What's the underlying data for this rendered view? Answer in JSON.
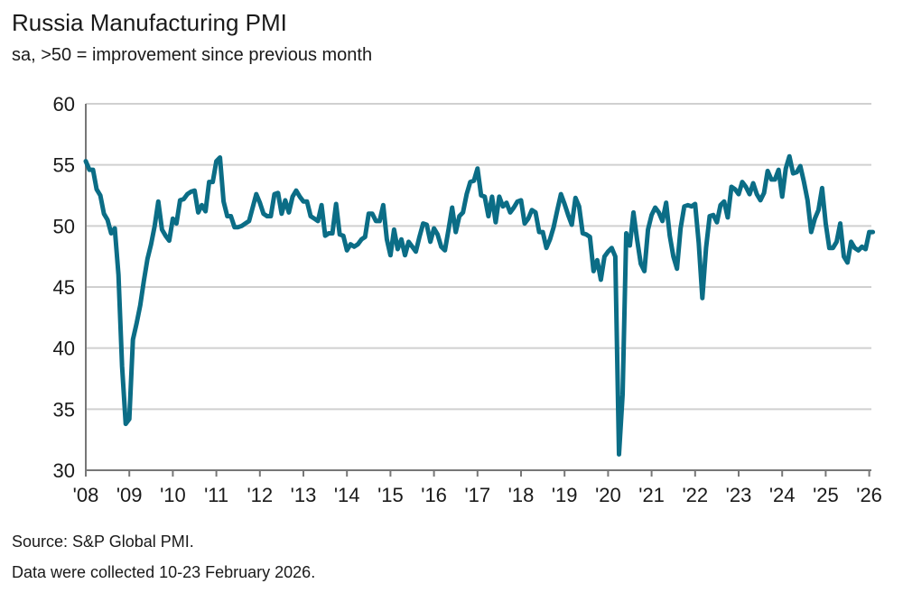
{
  "chart_data": {
    "type": "line",
    "title": "Russia Manufacturing PMI",
    "subtitle": "sa, >50 = improvement since previous month",
    "xlabel": "",
    "ylabel": "",
    "ylim": [
      30,
      60
    ],
    "yticks": [
      30,
      35,
      40,
      45,
      50,
      55,
      60
    ],
    "xtick_labels": [
      "'08",
      "'09",
      "'10",
      "'11",
      "'12",
      "'13",
      "'14",
      "'15",
      "'16",
      "'17",
      "'18",
      "'19",
      "'20",
      "'21",
      "'22",
      "'23",
      "'24",
      "'25",
      "'26"
    ],
    "x_start": "2008-01",
    "x_end": "2026-02",
    "frequency": "monthly",
    "grid": "horizontal",
    "line_color": "#0b6d86",
    "values": [
      55.3,
      54.6,
      54.6,
      53.0,
      52.5,
      51.0,
      50.5,
      49.4,
      49.8,
      46.0,
      38.5,
      33.8,
      34.2,
      40.7,
      42.0,
      43.5,
      45.5,
      47.3,
      48.5,
      50.0,
      52.0,
      49.7,
      49.2,
      48.8,
      50.6,
      50.2,
      52.1,
      52.2,
      52.6,
      52.8,
      52.9,
      51.1,
      51.7,
      51.2,
      53.6,
      53.6,
      55.3,
      55.6,
      52.0,
      50.8,
      50.8,
      49.9,
      49.9,
      50.0,
      50.2,
      50.4,
      51.5,
      52.6,
      51.9,
      51.0,
      50.8,
      50.8,
      52.6,
      52.7,
      51.0,
      52.1,
      51.1,
      52.4,
      52.9,
      52.4,
      52.0,
      52.0,
      50.8,
      50.6,
      50.4,
      51.7,
      49.2,
      49.4,
      49.4,
      51.8,
      49.3,
      49.2,
      48.0,
      48.5,
      48.3,
      48.5,
      48.9,
      49.1,
      51.0,
      51.0,
      50.4,
      50.4,
      51.7,
      48.9,
      47.6,
      49.7,
      48.1,
      48.9,
      47.6,
      48.7,
      48.3,
      47.9,
      49.1,
      50.2,
      50.1,
      48.7,
      49.8,
      49.3,
      48.3,
      48.0,
      49.7,
      51.5,
      49.5,
      50.8,
      51.1,
      52.6,
      53.6,
      53.7,
      54.7,
      52.5,
      52.4,
      50.8,
      52.4,
      50.3,
      52.4,
      51.6,
      51.9,
      51.1,
      51.5,
      52.0,
      52.1,
      50.2,
      50.6,
      51.3,
      51.1,
      49.5,
      49.5,
      48.2,
      48.9,
      49.9,
      51.3,
      52.6,
      51.8,
      50.9,
      50.1,
      52.3,
      51.6,
      49.4,
      49.3,
      49.1,
      46.3,
      47.2,
      45.6,
      47.5,
      47.9,
      48.2,
      47.5,
      31.3,
      36.2,
      49.4,
      48.4,
      51.1,
      48.9,
      46.9,
      46.3,
      49.7,
      50.9,
      51.5,
      51.1,
      50.4,
      51.9,
      49.2,
      47.5,
      46.5,
      49.8,
      51.6,
      51.7,
      51.6,
      51.8,
      48.6,
      44.1,
      48.2,
      50.8,
      50.9,
      50.3,
      51.7,
      52.0,
      50.7,
      53.2,
      53.0,
      52.6,
      53.6,
      53.2,
      52.6,
      53.5,
      52.6,
      52.1,
      52.7,
      54.5,
      53.8,
      53.8,
      54.6,
      52.4,
      54.7,
      55.7,
      54.3,
      54.4,
      54.9,
      53.6,
      52.1,
      49.5,
      50.6,
      51.3,
      53.1,
      50.2,
      48.2,
      48.2,
      48.7,
      50.2,
      47.5,
      47.0,
      48.7,
      48.2,
      48.0,
      48.3,
      48.1,
      49.5,
      49.5
    ]
  },
  "footer": {
    "source": "Source: S&P Global PMI.",
    "note": "Data were collected 10-23 February 2026."
  }
}
